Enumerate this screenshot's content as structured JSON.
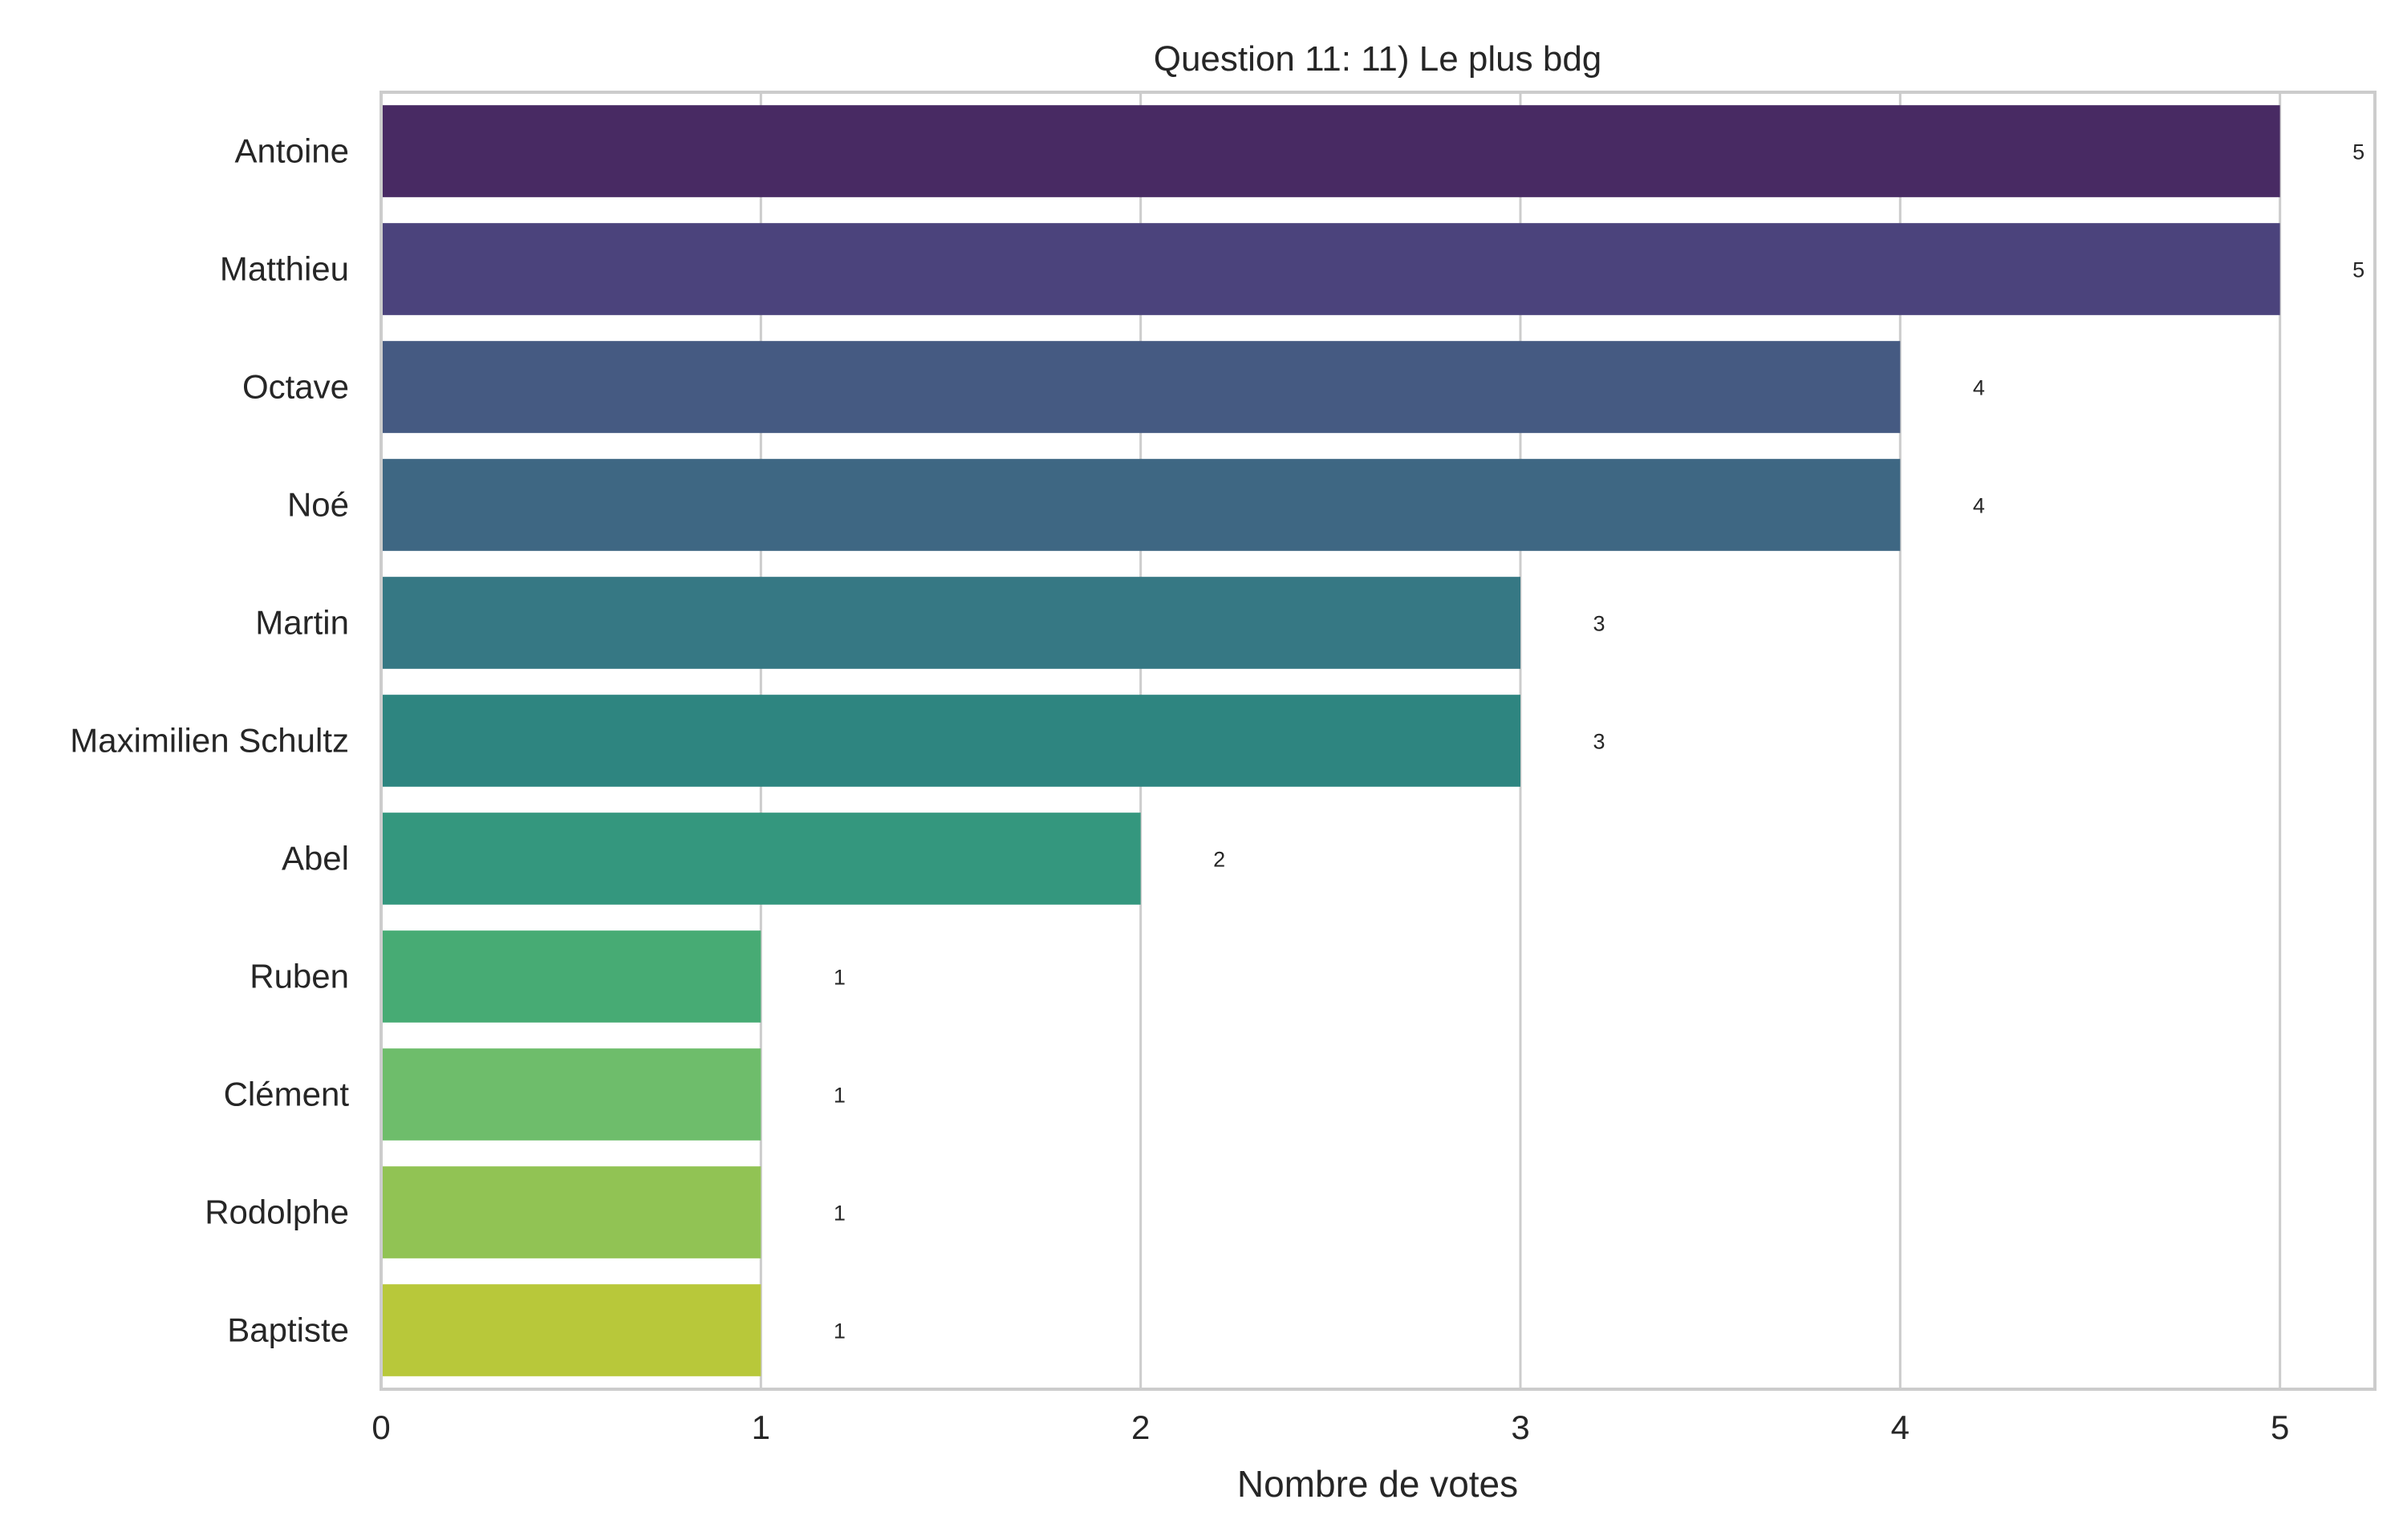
{
  "chart_data": {
    "type": "bar",
    "orientation": "horizontal",
    "title": "Question 11: 11) Le plus bdg",
    "xlabel": "Nombre de votes",
    "ylabel": "",
    "categories": [
      "Antoine",
      "Matthieu",
      "Octave",
      "Noé",
      "Martin",
      "Maximilien Schultz",
      "Abel",
      "Ruben",
      "Clément",
      "Rodolphe",
      "Baptiste"
    ],
    "values": [
      5,
      5,
      4,
      4,
      3,
      3,
      2,
      1,
      1,
      1,
      1
    ],
    "data_labels": [
      "5",
      "5",
      "4",
      "4",
      "3",
      "3",
      "2",
      "1",
      "1",
      "1",
      "1"
    ],
    "x_ticks": [
      "0",
      "1",
      "2",
      "3",
      "4",
      "5"
    ],
    "xlim": [
      0,
      5.25
    ],
    "grid": true,
    "legend": "none",
    "colors": [
      "#482a63",
      "#4b437c",
      "#455a82",
      "#3e6783",
      "#367884",
      "#2e8580",
      "#34977e",
      "#47ab74",
      "#6ebd6b",
      "#91c354",
      "#b8c83a"
    ]
  }
}
